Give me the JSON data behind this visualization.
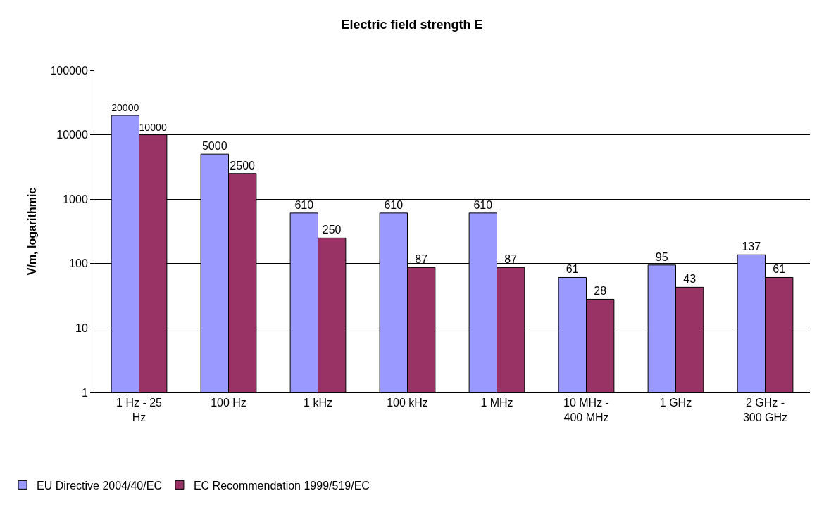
{
  "chart_data": {
    "type": "bar",
    "title": "Electric field strength E",
    "ylabel": "V/m, logarithmic",
    "categories": [
      "1 Hz - 25 Hz",
      "100 Hz",
      "1 kHz",
      "100 kHz",
      "1 MHz",
      "10 MHz - 400 MHz",
      "1 GHz",
      "2 GHz - 300 GHz"
    ],
    "series": [
      {
        "name": "EU Directive 2004/40/EC",
        "color": "#9999ff",
        "values": [
          20000,
          5000,
          610,
          610,
          610,
          61,
          95,
          137
        ]
      },
      {
        "name": "EC Recommendation 1999/519/EC",
        "color": "#993366",
        "values": [
          10000,
          2500,
          250,
          87,
          87,
          28,
          43,
          61
        ]
      }
    ],
    "log": true,
    "ylim": [
      1,
      100000
    ],
    "yticks": [
      1,
      10,
      100,
      1000,
      10000,
      100000
    ],
    "grid": "y",
    "legend": "bottom left",
    "data_labels": true
  }
}
